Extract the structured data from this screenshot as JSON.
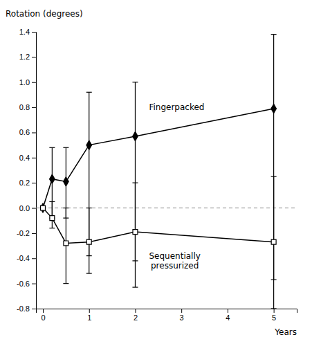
{
  "chart_data": {
    "type": "line",
    "ylabel": "Rotation (degrees)",
    "xlabel": "Years",
    "series": [
      {
        "x": [
          0,
          0.2,
          0.5,
          1,
          2,
          5
        ],
        "values": [
          0.0,
          0.23,
          0.21,
          0.5,
          0.57,
          0.79
        ],
        "ci_low": [
          0.0,
          -0.08,
          -0.08,
          -0.38,
          -0.42,
          -0.57
        ],
        "ci_high": [
          0.0,
          0.48,
          0.48,
          0.92,
          1.0,
          1.38
        ],
        "color": "black",
        "marker": "filled-diamond",
        "line_style": "solid"
      },
      {
        "x": [
          0,
          0.2,
          0.5,
          1,
          2,
          5
        ],
        "values": [
          0.0,
          -0.08,
          -0.28,
          -0.27,
          -0.19,
          -0.27
        ],
        "ci_low": [
          0.0,
          -0.16,
          -0.6,
          -0.52,
          -0.63,
          -0.8
        ],
        "ci_high": [
          0.0,
          0.05,
          0.0,
          0.0,
          0.2,
          0.25
        ],
        "color": "black",
        "marker": "open-square",
        "line_style": "solid"
      }
    ],
    "annotations": [
      {
        "text": "Fingerpacked",
        "x": 2.3,
        "y": 0.78
      },
      {
        "text": "Sequentially\npressurized",
        "x": 2.3,
        "y": -0.48
      }
    ],
    "reference_line": {
      "y": 0,
      "color": "gray",
      "line_style": "dashed"
    },
    "xlim": [
      -0.15,
      5.5
    ],
    "xticks": [
      0,
      1,
      2,
      3,
      4,
      5
    ],
    "ylim": [
      -0.8,
      1.4
    ],
    "yticks": [
      -0.8,
      -0.6,
      -0.4,
      -0.2,
      {
        "value": 0.0,
        "label": "0.0"
      },
      0.2,
      0.4,
      0.6,
      0.8,
      {
        "value": 1.0,
        "label": "1.0"
      },
      1.2,
      1.4
    ],
    "grid": false
  }
}
